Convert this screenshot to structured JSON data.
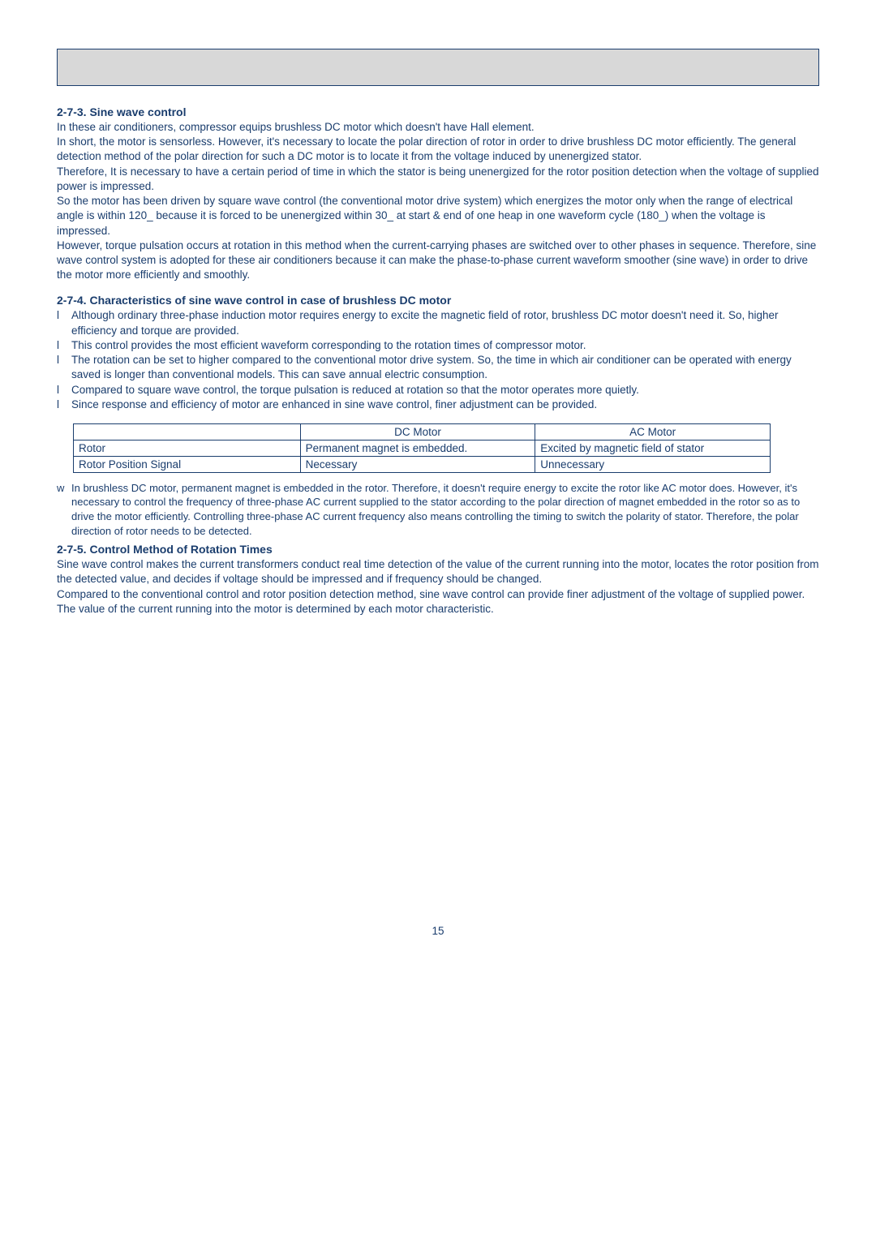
{
  "colors": {
    "text": "#1a3d6d",
    "header_bg": "#d8d8d8",
    "border": "#1a3d6d",
    "page_bg": "#ffffff"
  },
  "sec273": {
    "title": "2-7-3. Sine wave control",
    "p1": "In these air conditioners, compressor equips brushless DC motor which doesn't have Hall element.",
    "p2": "In short, the motor is sensorless. However, it's necessary to locate the polar direction of rotor in order to drive brushless DC motor efficiently. The general detection method of the polar direction for such a DC motor is to locate it from the voltage induced by unenergized stator.",
    "p3": "Therefore, It is necessary to have a certain period of time in which the stator is being unenergized for the rotor position detection when the voltage of supplied power is impressed.",
    "p4": "So the motor has been driven by square wave control (the conventional motor drive system) which energizes the motor only when the range of electrical angle is within 120_ because it is forced to be unenergized within 30_ at start & end of one heap in one waveform cycle (180_) when the voltage is impressed.",
    "p5": "However, torque pulsation occurs at rotation in this method when the current-carrying phases are switched over to other phases in sequence. Therefore, sine wave control system is adopted for these air conditioners because it can make the phase-to-phase current waveform smoother (sine wave) in order to drive the motor more efficiently and smoothly."
  },
  "sec274": {
    "title": "2-7-4. Characteristics of sine wave control in case of brushless DC motor",
    "bullets": [
      "Although ordinary three-phase induction motor requires energy to excite the magnetic field of rotor, brushless DC motor doesn't need it. So, higher efficiency and torque are provided.",
      "This control provides the most efficient waveform corresponding to the rotation times of compressor motor.",
      "The rotation can be set to higher compared to the conventional motor drive system. So, the time in which air conditioner can be operated with energy saved is longer than conventional models. This can save annual electric consumption.",
      "Compared to square wave control, the torque pulsation is reduced at rotation so that the motor operates more quietly.",
      "Since response and efficiency of motor are enhanced in sine wave control, finer adjustment can be provided."
    ],
    "bullet_marker": "l"
  },
  "table": {
    "col_widths": [
      "280px",
      "290px",
      "290px"
    ],
    "headers": [
      "",
      "DC Motor",
      "AC Motor"
    ],
    "rows": [
      [
        "Rotor",
        "Permanent magnet is embedded.",
        "Excited by magnetic field of stator"
      ],
      [
        "Rotor Position Signal",
        "Necessary",
        "Unnecessary"
      ]
    ]
  },
  "note": {
    "marker": "w",
    "text": "In brushless DC motor, permanent magnet is embedded in the rotor. Therefore, it doesn't require energy to excite the rotor like AC motor does. However, it's necessary to control the frequency of three-phase AC current supplied to the stator according to the polar direction of magnet embedded in the rotor so as to drive the motor efficiently. Controlling three-phase AC current frequency also means controlling the timing to switch the polarity of stator. Therefore, the polar direction of rotor needs to be detected."
  },
  "sec275": {
    "title": "2-7-5. Control Method of Rotation Times",
    "p1": "Sine wave control makes the current transformers conduct real time detection of the value of the current running into the motor, locates the rotor position from the detected value, and decides if voltage should be impressed and if frequency should be changed.",
    "p2": "Compared to the conventional control and rotor position detection method, sine wave control can provide finer adjustment of the voltage of supplied power. The value of the current running into the motor is determined by each motor characteristic."
  },
  "page_number": "15"
}
